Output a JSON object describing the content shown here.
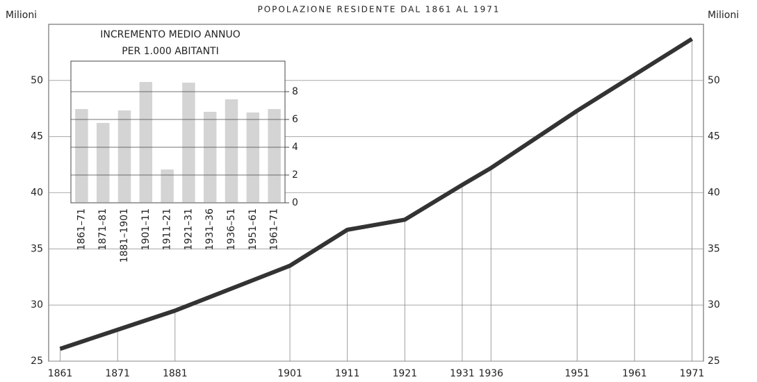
{
  "chart_data": [
    {
      "type": "line",
      "title": "POPOLAZIONE RESIDENTE DAL 1861 AL 1971",
      "y_label": "Milioni",
      "y2_label": "Milioni",
      "x": [
        1861,
        1871,
        1881,
        1901,
        1911,
        1921,
        1931,
        1936,
        1951,
        1961,
        1971
      ],
      "values": [
        26.1,
        27.8,
        29.5,
        33.5,
        36.7,
        37.6,
        40.7,
        42.2,
        47.3,
        50.5,
        53.7
      ],
      "color": "#333333",
      "xlim": [
        1859,
        1973
      ],
      "xticks": [
        1861,
        1871,
        1881,
        1901,
        1911,
        1921,
        1931,
        1936,
        1951,
        1961,
        1971
      ],
      "ylim": [
        25,
        55
      ],
      "yticks": [
        25,
        30,
        35,
        40,
        45,
        50
      ],
      "grid": true
    },
    {
      "type": "bar",
      "title": [
        "INCREMENTO MEDIO ANNUO",
        "PER 1.000 ABITANTI"
      ],
      "categories": [
        "1861–71",
        "1871–81",
        "1881–1901",
        "1901–11",
        "1911–21",
        "1921–31",
        "1931–36",
        "1936–51",
        "1951–61",
        "1961–71"
      ],
      "values": [
        6.75,
        5.75,
        6.65,
        8.7,
        2.4,
        8.65,
        6.55,
        7.45,
        6.5,
        6.75
      ],
      "color": "#d4d4d4",
      "ylim": [
        0,
        10.2
      ],
      "yticks": [
        0,
        2,
        4,
        6,
        8
      ],
      "grid": true
    }
  ]
}
